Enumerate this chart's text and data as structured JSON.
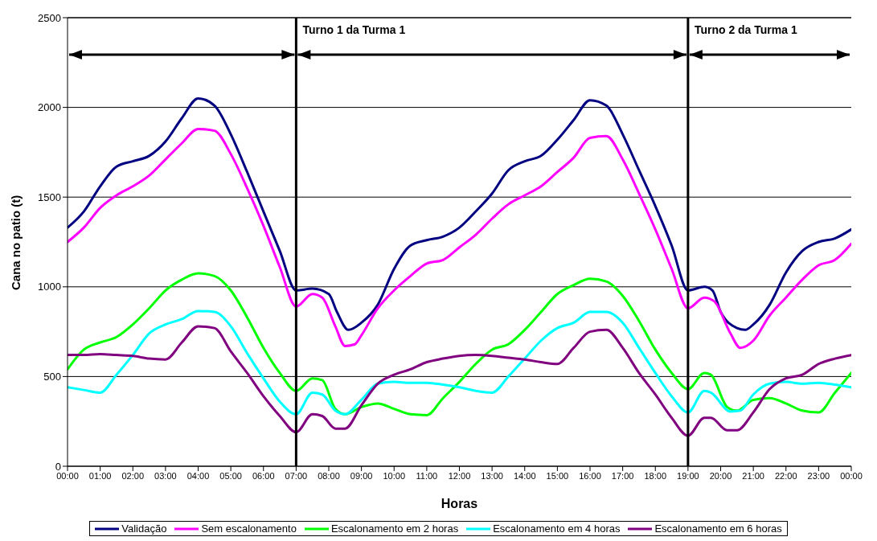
{
  "chart_data": {
    "type": "line",
    "xlabel": "Horas",
    "ylabel": "Cana no patio (t)",
    "xlim": [
      0,
      24
    ],
    "xticks": [
      {
        "value": 0,
        "label": "00:00"
      },
      {
        "value": 1,
        "label": "01:00"
      },
      {
        "value": 2,
        "label": "02:00"
      },
      {
        "value": 3,
        "label": "03:00"
      },
      {
        "value": 4,
        "label": "04:00"
      },
      {
        "value": 5,
        "label": "05:00"
      },
      {
        "value": 6,
        "label": "06:00"
      },
      {
        "value": 7,
        "label": "07:00"
      },
      {
        "value": 8,
        "label": "08:00"
      },
      {
        "value": 9,
        "label": "09:00"
      },
      {
        "value": 10,
        "label": "10:00"
      },
      {
        "value": 11,
        "label": "11:00"
      },
      {
        "value": 12,
        "label": "12:00"
      },
      {
        "value": 13,
        "label": "13:00"
      },
      {
        "value": 14,
        "label": "14:00"
      },
      {
        "value": 15,
        "label": "15:00"
      },
      {
        "value": 16,
        "label": "16:00"
      },
      {
        "value": 17,
        "label": "17:00"
      },
      {
        "value": 18,
        "label": "18:00"
      },
      {
        "value": 19,
        "label": "19:00"
      },
      {
        "value": 20,
        "label": "20:00"
      },
      {
        "value": 21,
        "label": "21:00"
      },
      {
        "value": 22,
        "label": "22:00"
      },
      {
        "value": 23,
        "label": "23:00"
      },
      {
        "value": 24,
        "label": "00:00"
      }
    ],
    "ylim": [
      0,
      2500
    ],
    "yticks": [
      0,
      500,
      1000,
      1500,
      2000,
      2500
    ],
    "grid": "y",
    "legend": "bottom",
    "ref_lines": [
      {
        "axis": "x",
        "value": 7,
        "color": "#000000"
      },
      {
        "axis": "x",
        "value": 19,
        "color": "#000000"
      }
    ],
    "annotations": [
      "Turno 1 da Turma 1",
      "Turno 2 da Turma 1"
    ],
    "series": [
      {
        "name": "Validação",
        "color": "#000080",
        "x": [
          0,
          0.5,
          1,
          1.5,
          2,
          2.5,
          3,
          3.5,
          4,
          4.5,
          5,
          5.5,
          6,
          6.5,
          7,
          7.5,
          8,
          8.25,
          8.6,
          9,
          9.5,
          10,
          10.5,
          11,
          11.5,
          12,
          12.5,
          13,
          13.5,
          14,
          14.5,
          15,
          15.5,
          16,
          16.5,
          17,
          17.5,
          18,
          18.5,
          19,
          19.5,
          19.75,
          20,
          20.5,
          20.75,
          21,
          21.5,
          22,
          22.5,
          23,
          23.5,
          24
        ],
        "values": [
          1330,
          1420,
          1560,
          1670,
          1700,
          1730,
          1810,
          1940,
          2050,
          2010,
          1850,
          1640,
          1420,
          1200,
          980,
          990,
          960,
          860,
          760,
          800,
          900,
          1100,
          1230,
          1260,
          1280,
          1330,
          1420,
          1520,
          1650,
          1700,
          1730,
          1820,
          1930,
          2040,
          2010,
          1850,
          1650,
          1450,
          1230,
          980,
          1000,
          980,
          860,
          770,
          760,
          790,
          900,
          1080,
          1200,
          1250,
          1270,
          1320
        ]
      },
      {
        "name": "Sem escalonamento",
        "color": "#ff00ff",
        "x": [
          0,
          0.5,
          1,
          1.5,
          2,
          2.5,
          3,
          3.5,
          4,
          4.5,
          5,
          5.5,
          6,
          6.5,
          7,
          7.5,
          7.8,
          8.2,
          8.5,
          8.8,
          9,
          9.5,
          10,
          10.5,
          11,
          11.5,
          12,
          12.5,
          13,
          13.5,
          14,
          14.5,
          15,
          15.5,
          16,
          16.5,
          17,
          17.5,
          18,
          18.5,
          19,
          19.5,
          19.8,
          20.3,
          20.6,
          21,
          21.5,
          22,
          22.5,
          23,
          23.5,
          24
        ],
        "values": [
          1250,
          1330,
          1440,
          1510,
          1560,
          1620,
          1710,
          1800,
          1880,
          1870,
          1740,
          1550,
          1340,
          1110,
          890,
          960,
          940,
          780,
          670,
          680,
          730,
          880,
          980,
          1060,
          1130,
          1150,
          1220,
          1290,
          1380,
          1460,
          1510,
          1560,
          1640,
          1720,
          1830,
          1840,
          1710,
          1520,
          1320,
          1100,
          880,
          940,
          920,
          740,
          660,
          700,
          840,
          940,
          1040,
          1120,
          1150,
          1240
        ]
      },
      {
        "name": "Escalonamento em 2 horas",
        "color": "#00ff00",
        "x": [
          0,
          0.5,
          1,
          1.5,
          2,
          2.5,
          3,
          3.5,
          4,
          4.5,
          5,
          5.5,
          6,
          6.5,
          7,
          7.5,
          7.8,
          8.2,
          8.5,
          9,
          9.5,
          10,
          10.5,
          11,
          11.5,
          12,
          12.5,
          13,
          13.5,
          14,
          14.5,
          15,
          15.5,
          16,
          16.5,
          17,
          17.5,
          18,
          18.5,
          19,
          19.5,
          19.7,
          20.2,
          20.5,
          21,
          21.5,
          22,
          22.5,
          23,
          23.5,
          24
        ],
        "values": [
          540,
          650,
          690,
          720,
          790,
          880,
          980,
          1040,
          1075,
          1060,
          980,
          830,
          660,
          520,
          420,
          490,
          480,
          320,
          290,
          330,
          350,
          320,
          290,
          285,
          380,
          470,
          570,
          650,
          680,
          760,
          860,
          960,
          1010,
          1045,
          1030,
          950,
          810,
          650,
          520,
          430,
          520,
          510,
          330,
          310,
          370,
          380,
          350,
          310,
          300,
          410,
          520
        ]
      },
      {
        "name": "Escalonamento em 4 horas",
        "color": "#00ffff",
        "x": [
          0,
          0.5,
          1,
          1.5,
          2,
          2.5,
          3,
          3.5,
          4,
          4.5,
          5,
          5.5,
          6,
          6.5,
          7,
          7.5,
          7.8,
          8.2,
          8.5,
          9,
          9.5,
          10,
          10.5,
          11,
          11.5,
          12,
          12.5,
          13,
          13.5,
          14,
          14.5,
          15,
          15.5,
          16,
          16.5,
          17,
          17.5,
          18,
          18.5,
          19,
          19.5,
          19.7,
          20.3,
          20.6,
          21,
          21.5,
          22,
          22.5,
          23,
          23.5,
          24
        ],
        "values": [
          440,
          425,
          410,
          510,
          620,
          740,
          790,
          820,
          865,
          860,
          780,
          630,
          490,
          360,
          290,
          410,
          400,
          310,
          290,
          370,
          460,
          470,
          465,
          465,
          455,
          440,
          420,
          410,
          500,
          600,
          700,
          770,
          800,
          860,
          860,
          800,
          660,
          520,
          390,
          300,
          420,
          410,
          305,
          310,
          400,
          460,
          470,
          460,
          465,
          455,
          440
        ]
      },
      {
        "name": "Escalonamento em 6 horas",
        "color": "#800080",
        "x": [
          0,
          0.5,
          1,
          1.5,
          2,
          2.5,
          3,
          3.5,
          4,
          4.5,
          5,
          5.5,
          6,
          6.5,
          7,
          7.5,
          7.8,
          8.2,
          8.5,
          9,
          9.5,
          10,
          10.5,
          11,
          11.5,
          12,
          12.5,
          13,
          13.5,
          14,
          14.5,
          15,
          15.5,
          16,
          16.5,
          17,
          17.5,
          18,
          18.5,
          19,
          19.5,
          19.7,
          20.2,
          20.5,
          21,
          21.5,
          22,
          22.5,
          23,
          23.5,
          24
        ],
        "values": [
          620,
          620,
          625,
          620,
          615,
          600,
          595,
          690,
          780,
          770,
          640,
          520,
          390,
          280,
          190,
          290,
          280,
          210,
          210,
          340,
          460,
          510,
          540,
          580,
          600,
          615,
          620,
          615,
          605,
          595,
          580,
          570,
          660,
          750,
          760,
          660,
          520,
          400,
          270,
          170,
          270,
          270,
          200,
          200,
          300,
          430,
          490,
          510,
          570,
          600,
          620
        ]
      }
    ]
  }
}
